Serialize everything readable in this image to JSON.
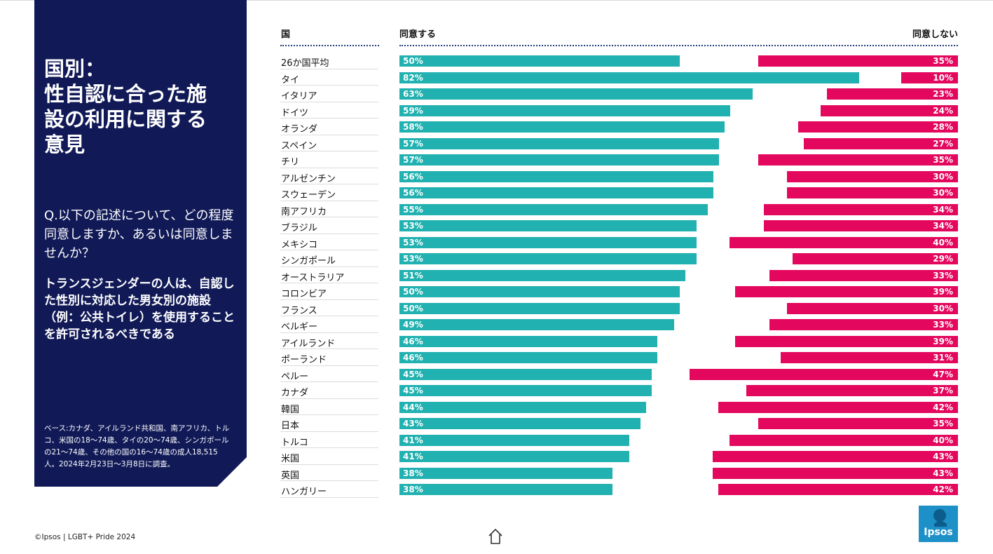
{
  "panel": {
    "title_line1": "国別：",
    "title_line2": "性自認に合った施",
    "title_line3": "設の利用に関する",
    "title_line4": "意見",
    "question": "Q.以下の記述について、どの程度同意しますか、あるいは同意しませんか？",
    "statement": "トランスジェンダーの人は、自認した性別に対応した男女別の施設（例：公共トイレ）を使用することを許可されるべきである",
    "base_note": "ベース:カナダ、アイルランド共和国、南アフリカ、トルコ、米国の18～74歳、タイの20～74歳、シンガポールの21～74歳、その他の国の16～74歳の成人18,515人。2024年2月23日～3月8日に調査。"
  },
  "footer": {
    "copyright": "©Ipsos | LGBT+ Pride 2024"
  },
  "logo": {
    "text": "Ipsos"
  },
  "colors": {
    "navy": "#111a57",
    "agree": "#21b1b0",
    "disagree": "#e3075d"
  },
  "chart_data": {
    "type": "bar",
    "orientation": "horizontal-diverging",
    "xlabel": "",
    "ylabel": "",
    "headers": {
      "country": "国",
      "agree": "同意する",
      "disagree": "同意しない"
    },
    "xlim": [
      0,
      100
    ],
    "categories": [
      "26か国平均",
      "タイ",
      "イタリア",
      "ドイツ",
      "オランダ",
      "スペイン",
      "チリ",
      "アルゼンチン",
      "スウェーデン",
      "南アフリカ",
      "ブラジル",
      "メキシコ",
      "シンガポール",
      "オーストラリア",
      "コロンビア",
      "フランス",
      "ベルギー",
      "アイルランド",
      "ポーランド",
      "ペルー",
      "カナダ",
      "韓国",
      "日本",
      "トルコ",
      "米国",
      "英国",
      "ハンガリー"
    ],
    "series": [
      {
        "name": "同意する",
        "values": [
          50,
          82,
          63,
          59,
          58,
          57,
          57,
          56,
          56,
          55,
          53,
          53,
          53,
          51,
          50,
          50,
          49,
          46,
          46,
          45,
          45,
          44,
          43,
          41,
          41,
          38,
          38
        ],
        "labels": [
          "50%",
          "82%",
          "63%",
          "59%",
          "58%",
          "57%",
          "57%",
          "56%",
          "56%",
          "55%",
          "53%",
          "53%",
          "53%",
          "51%",
          "50%",
          "50%",
          "49%",
          "46%",
          "46%",
          "45%",
          "45%",
          "44%",
          "43%",
          "41%",
          "41%",
          "38%",
          "38%"
        ]
      },
      {
        "name": "同意しない",
        "values": [
          35,
          10,
          23,
          24,
          28,
          27,
          35,
          30,
          30,
          34,
          34,
          40,
          29,
          33,
          39,
          30,
          33,
          39,
          31,
          47,
          37,
          42,
          35,
          40,
          43,
          43,
          42
        ],
        "labels": [
          "35%",
          "10%",
          "23%",
          "24%",
          "28%",
          "27%",
          "35%",
          "30%",
          "30%",
          "34%",
          "34%",
          "40%",
          "29%",
          "33%",
          "39%",
          "30%",
          "33%",
          "39%",
          "31%",
          "47%",
          "37%",
          "42%",
          "35%",
          "40%",
          "43%",
          "43%",
          "42%"
        ]
      }
    ]
  }
}
